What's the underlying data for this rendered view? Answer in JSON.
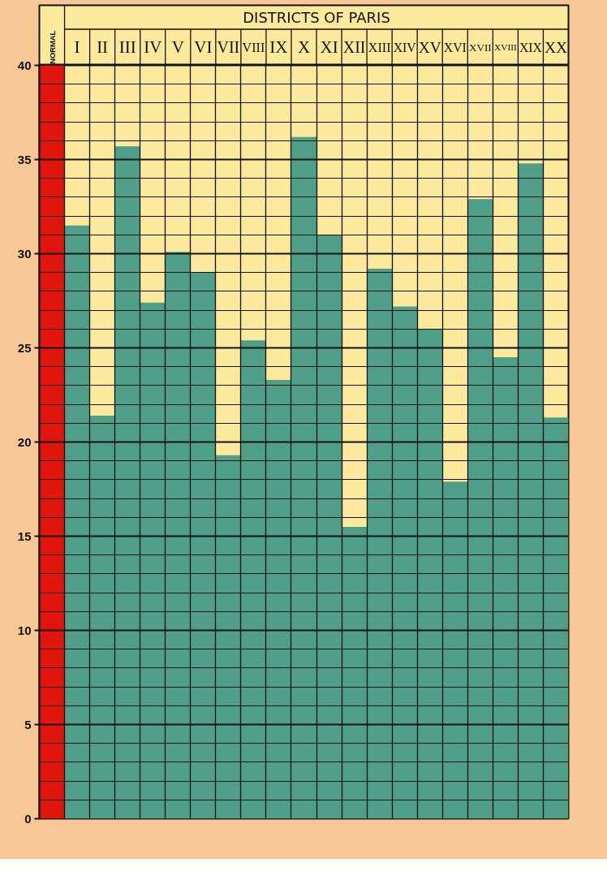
{
  "chart_data": {
    "type": "bar",
    "xlabel": "DISTRICTS OF PARIS",
    "categories": [
      "NORMAL",
      "I",
      "II",
      "III",
      "IV",
      "V",
      "VI",
      "VII",
      "VIII",
      "IX",
      "X",
      "XI",
      "XII",
      "XIII",
      "XIV",
      "XV",
      "XVI",
      "XVII",
      "XVIII",
      "XIX",
      "XX"
    ],
    "values": [
      40,
      31.5,
      21.4,
      35.7,
      27.4,
      30.1,
      29.0,
      19.3,
      25.4,
      23.3,
      36.2,
      31.0,
      15.5,
      29.2,
      27.2,
      26.0,
      17.9,
      32.9,
      24.5,
      34.8,
      21.3
    ],
    "colors": [
      "#e0160c",
      "#4f9e88",
      "#4f9e88",
      "#4f9e88",
      "#4f9e88",
      "#4f9e88",
      "#4f9e88",
      "#4f9e88",
      "#4f9e88",
      "#4f9e88",
      "#4f9e88",
      "#4f9e88",
      "#4f9e88",
      "#4f9e88",
      "#4f9e88",
      "#4f9e88",
      "#4f9e88",
      "#4f9e88",
      "#4f9e88",
      "#4f9e88",
      "#4f9e88"
    ],
    "ylim": [
      0,
      40
    ],
    "yticks": [
      0,
      5,
      10,
      15,
      20,
      25,
      30,
      35,
      40
    ],
    "grid": true
  }
}
